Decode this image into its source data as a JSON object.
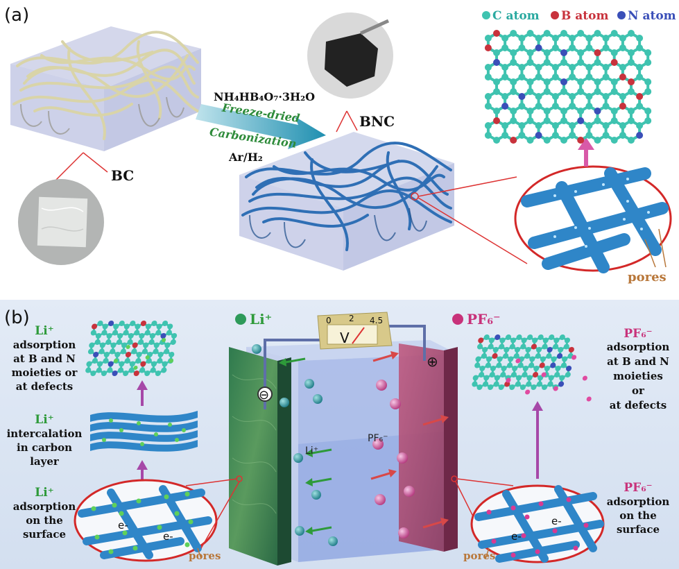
{
  "panel_a": {
    "label": "(a)",
    "reagent": "NH₄HB₄O₇·3H₂O",
    "step1": "Freeze-dried",
    "step2": "Carbonization",
    "atmosphere": "Ar/H₂",
    "bc_label": "BC",
    "bnc_label": "BNC",
    "pores_label": "pores",
    "legend": {
      "c": "C atom",
      "b": "B atom",
      "n": "N atom",
      "c_color": "#3fc3b0",
      "b_color": "#c8323c",
      "n_color": "#3a4fb8"
    }
  },
  "panel_b": {
    "label": "(b)",
    "li_legend": "Li⁺",
    "pf6_legend": "PF₆⁻",
    "left": {
      "t1_ion": "Li⁺",
      "t1_lines": [
        "adsorption",
        "at B and N",
        "moieties or",
        "at defects"
      ],
      "t2_ion": "Li⁺",
      "t2_lines": [
        "intercalation",
        "in carbon",
        "layer"
      ],
      "t3_ion": "Li⁺",
      "t3_lines": [
        "adsorption",
        "on the",
        "surface"
      ]
    },
    "right": {
      "t1_ion": "PF₆⁻",
      "t1_lines": [
        "adsorption",
        "at B and N",
        "moieties",
        "or",
        "at defects"
      ],
      "t2_ion": "PF₆⁻",
      "t2_lines": [
        "adsorption",
        "on the",
        "surface"
      ]
    },
    "cell": {
      "li_label": "Li⁺",
      "pf6_label": "PF₆⁻",
      "neg_symbol": "⊖",
      "pos_symbol": "⊕",
      "meter_symbol": "V",
      "meter_ticks": [
        "0",
        "2",
        "4.5"
      ]
    },
    "electrons": [
      "e-",
      "e-",
      "e-",
      "e-"
    ],
    "pores_left": "pores",
    "pores_right": "pores",
    "li_color": "#2e9a5a",
    "pf6_color": "#c8327a"
  }
}
